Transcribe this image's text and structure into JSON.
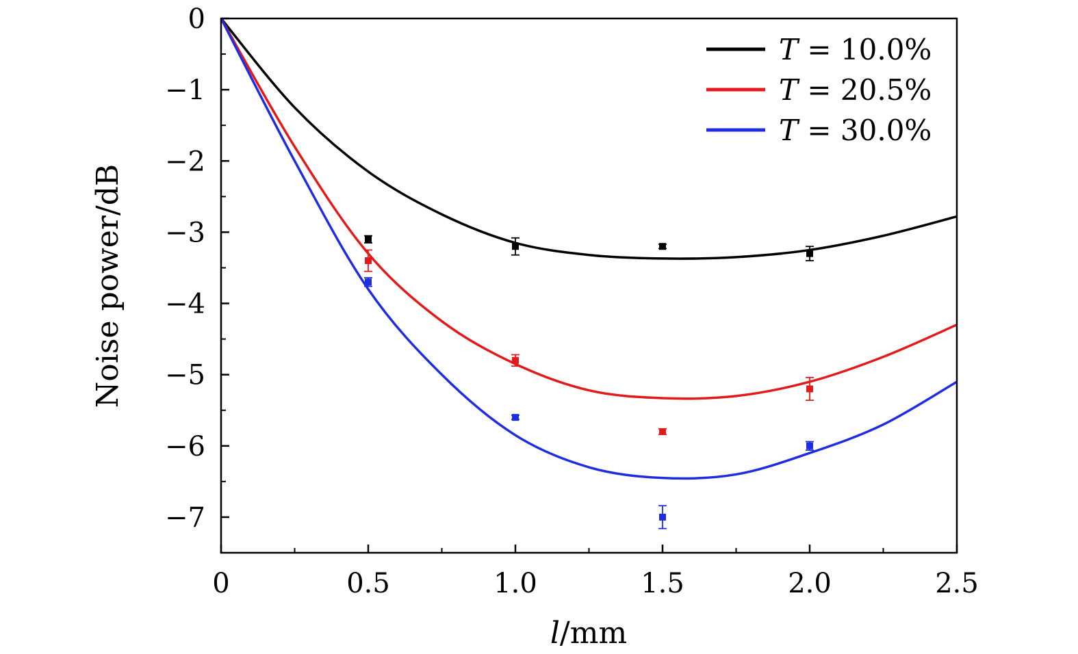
{
  "chart_data": {
    "type": "line",
    "xlabel_var": "l",
    "xlabel_unit": "/mm",
    "ylabel": "Noise power/dB",
    "xlim": [
      0,
      2.5
    ],
    "ylim": [
      -7.5,
      0
    ],
    "x_ticks": [
      "0",
      "0.5",
      "1.0",
      "1.5",
      "2.0",
      "2.5"
    ],
    "x_tick_values": [
      0,
      0.5,
      1.0,
      1.5,
      2.0,
      2.5
    ],
    "y_ticks": [
      "0",
      "−1",
      "−2",
      "−3",
      "−4",
      "−5",
      "−6",
      "−7"
    ],
    "y_tick_values": [
      0,
      -1,
      -2,
      -3,
      -4,
      -5,
      -6,
      -7
    ],
    "grid": false,
    "legend_position": "top-right",
    "series": [
      {
        "name": "T = 10.0%",
        "legend_var": "T",
        "legend_rest": " = 10.0%",
        "color": "#000000",
        "fit_x": [
          0,
          0.25,
          0.5,
          0.75,
          1.0,
          1.25,
          1.5,
          1.75,
          2.0,
          2.25,
          2.5
        ],
        "fit_y": [
          0,
          -1.25,
          -2.15,
          -2.75,
          -3.15,
          -3.32,
          -3.37,
          -3.35,
          -3.25,
          -3.05,
          -2.78
        ],
        "points": [
          {
            "x": 0.5,
            "y": -3.1,
            "err": 0.05
          },
          {
            "x": 1.0,
            "y": -3.2,
            "err": 0.12
          },
          {
            "x": 1.5,
            "y": -3.2,
            "err": 0.03
          },
          {
            "x": 2.0,
            "y": -3.3,
            "err": 0.1
          }
        ]
      },
      {
        "name": "T = 20.5%",
        "legend_var": "T",
        "legend_rest": " = 20.5%",
        "color": "#e31a1c",
        "fit_x": [
          0,
          0.25,
          0.5,
          0.75,
          1.0,
          1.25,
          1.5,
          1.75,
          2.0,
          2.25,
          2.5
        ],
        "fit_y": [
          0,
          -1.8,
          -3.3,
          -4.25,
          -4.85,
          -5.22,
          -5.33,
          -5.3,
          -5.1,
          -4.75,
          -4.3
        ],
        "points": [
          {
            "x": 0.5,
            "y": -3.4,
            "err": 0.15
          },
          {
            "x": 1.0,
            "y": -4.8,
            "err": 0.08
          },
          {
            "x": 1.5,
            "y": -5.8,
            "err": 0.04
          },
          {
            "x": 2.0,
            "y": -5.2,
            "err": 0.16
          }
        ]
      },
      {
        "name": "T = 30.0%",
        "legend_var": "T",
        "legend_rest": " = 30.0%",
        "color": "#1f2de0",
        "fit_x": [
          0,
          0.25,
          0.5,
          0.75,
          1.0,
          1.25,
          1.5,
          1.75,
          2.0,
          2.25,
          2.5
        ],
        "fit_y": [
          0,
          -2.0,
          -3.8,
          -5.0,
          -5.85,
          -6.3,
          -6.45,
          -6.4,
          -6.1,
          -5.7,
          -5.1
        ],
        "points": [
          {
            "x": 0.5,
            "y": -3.7,
            "err": 0.06
          },
          {
            "x": 1.0,
            "y": -5.6,
            "err": 0.03
          },
          {
            "x": 1.5,
            "y": -7.0,
            "err": 0.16
          },
          {
            "x": 2.0,
            "y": -6.0,
            "err": 0.06
          }
        ]
      }
    ]
  }
}
